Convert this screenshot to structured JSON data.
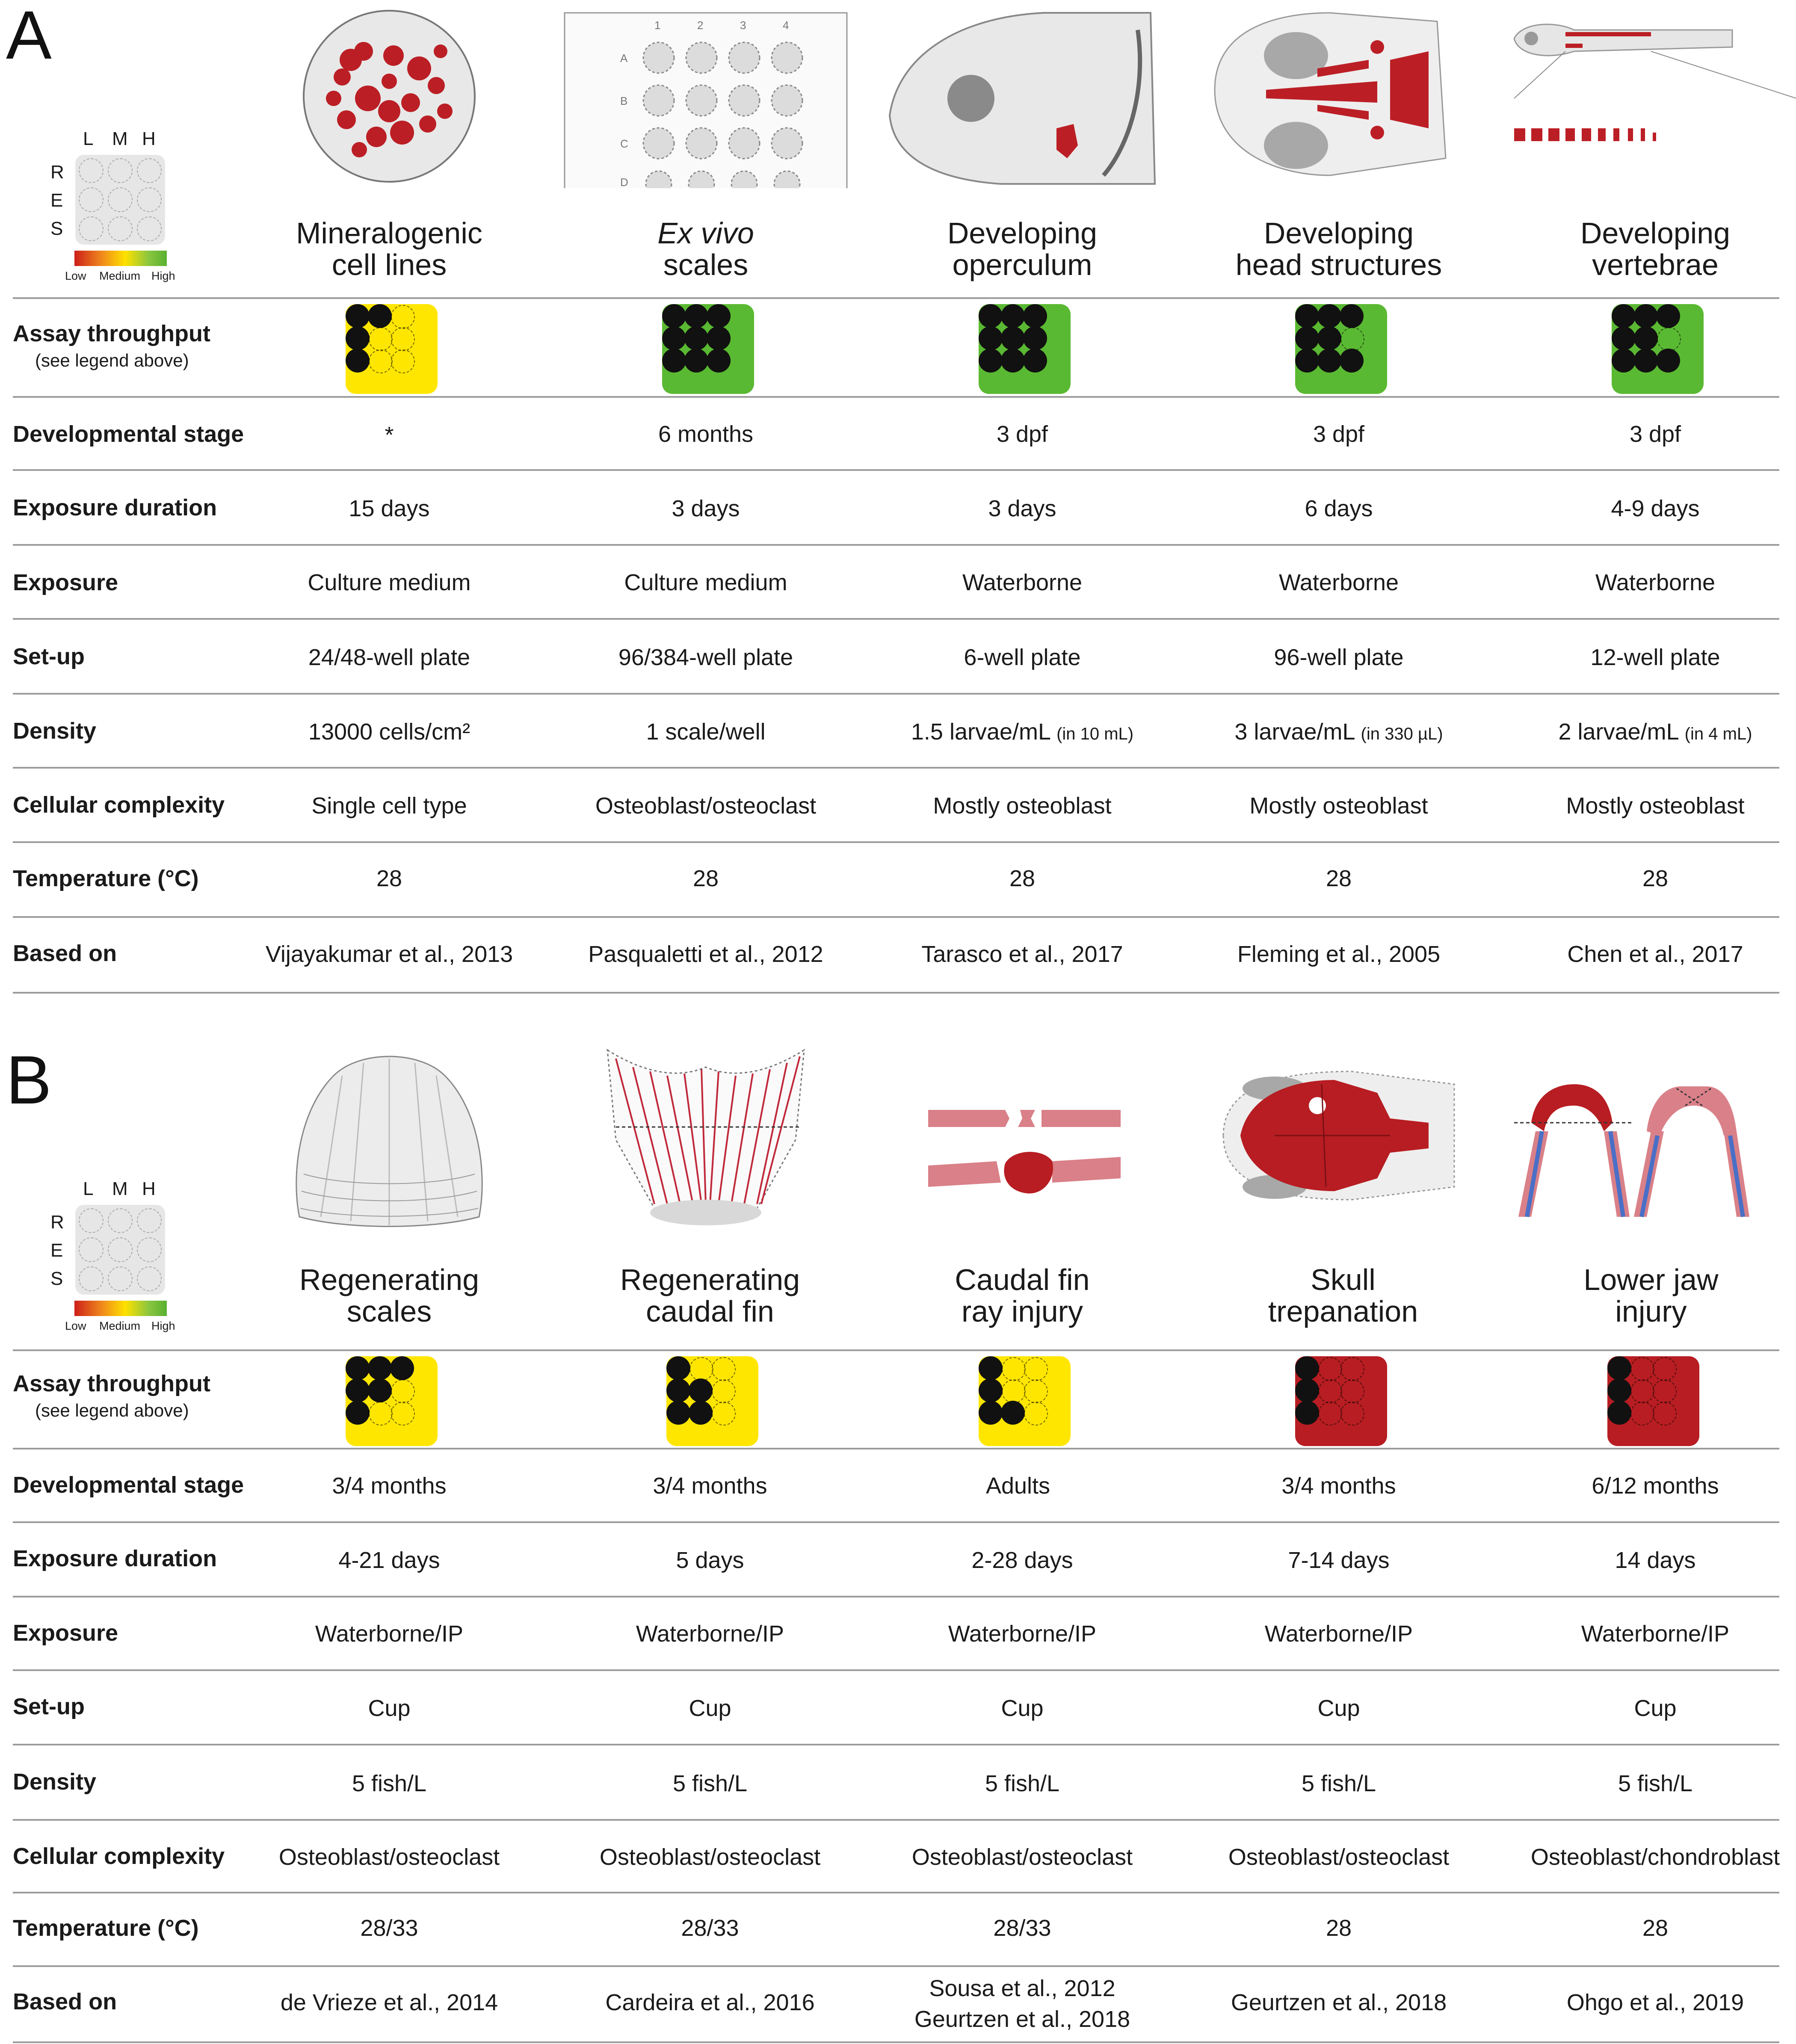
{
  "legend": {
    "cols": [
      "L",
      "M",
      "H"
    ],
    "rows": [
      "R",
      "E",
      "S"
    ],
    "low": "Low",
    "medium": "Medium",
    "high": "High"
  },
  "colors": {
    "green": "#5ab932",
    "yellow": "#ffe600",
    "red": "#b71d22",
    "dot": "#111111"
  },
  "row_labels": {
    "throughput": "Assay throughput",
    "throughput_note": "(see legend above)",
    "stage": "Developmental stage",
    "duration": "Exposure duration",
    "exposure": "Exposure",
    "setup": "Set-up",
    "density": "Density",
    "complexity": "Cellular complexity",
    "temperature": "Temperature (°C)",
    "based": "Based on"
  },
  "panelA": {
    "letter": "A",
    "columns": [
      {
        "icon": "cell-culture-well-icon",
        "title1": "Mineralogenic",
        "title2": "cell lines",
        "throughput": {
          "color": "yellow",
          "filled": [
            1,
            1,
            0,
            1,
            0,
            0,
            1,
            0,
            0
          ]
        },
        "stage": "*",
        "duration": "15 days",
        "exposure": "Culture medium",
        "setup": "24/48-well plate",
        "density": "13000 cells/cm²",
        "density_note": "",
        "complexity": "Single cell type",
        "temperature": "28",
        "based": "Vijayakumar et al., 2013"
      },
      {
        "icon": "well-plate-icon",
        "title1": "Ex vivo",
        "title2": "scales",
        "throughput": {
          "color": "green",
          "filled": [
            1,
            1,
            1,
            1,
            1,
            1,
            1,
            1,
            1
          ]
        },
        "stage": "6 months",
        "duration": "3 days",
        "exposure": "Culture medium",
        "setup": "96/384-well plate",
        "density": "1 scale/well",
        "density_note": "",
        "complexity": "Osteoblast/osteoclast",
        "temperature": "28",
        "based": "Pasqualetti et al., 2012"
      },
      {
        "icon": "larva-operculum-icon",
        "title1": "Developing",
        "title2": "operculum",
        "throughput": {
          "color": "green",
          "filled": [
            1,
            1,
            1,
            1,
            1,
            1,
            1,
            1,
            1
          ]
        },
        "stage": "3 dpf",
        "duration": "3 days",
        "exposure": "Waterborne",
        "setup": "6-well plate",
        "density": "1.5 larvae/mL",
        "density_note": "(in 10 mL)",
        "complexity": "Mostly osteoblast",
        "temperature": "28",
        "based": "Tarasco et al., 2017"
      },
      {
        "icon": "larva-head-icon",
        "title1": "Developing",
        "title2": "head structures",
        "throughput": {
          "color": "green",
          "filled": [
            1,
            1,
            1,
            1,
            1,
            0,
            1,
            1,
            1
          ]
        },
        "stage": "3 dpf",
        "duration": "6 days",
        "exposure": "Waterborne",
        "setup": "96-well plate",
        "density": "3 larvae/mL",
        "density_note": "(in 330 µL)",
        "complexity": "Mostly osteoblast",
        "temperature": "28",
        "based": "Fleming et al., 2005"
      },
      {
        "icon": "larva-vertebrae-icon",
        "title1": "Developing",
        "title2": "vertebrae",
        "throughput": {
          "color": "green",
          "filled": [
            1,
            1,
            1,
            1,
            1,
            0,
            1,
            1,
            1
          ]
        },
        "stage": "3 dpf",
        "duration": "4-9 days",
        "exposure": "Waterborne",
        "setup": "12-well plate",
        "density": "2 larvae/mL",
        "density_note": "(in 4 mL)",
        "complexity": "Mostly osteoblast",
        "temperature": "28",
        "based": "Chen et al., 2017"
      }
    ]
  },
  "panelB": {
    "letter": "B",
    "columns": [
      {
        "icon": "scale-icon",
        "title1": "Regenerating",
        "title2": "scales",
        "throughput": {
          "color": "yellow",
          "filled": [
            1,
            1,
            1,
            1,
            1,
            0,
            1,
            0,
            0
          ]
        },
        "stage": "3/4 months",
        "duration": "4-21 days",
        "exposure": "Waterborne/IP",
        "setup": "Cup",
        "density": "5 fish/L",
        "complexity": "Osteoblast/osteoclast",
        "temperature": "28/33",
        "based": "de Vrieze et al., 2014",
        "based2": ""
      },
      {
        "icon": "caudal-fin-icon",
        "title1": "Regenerating",
        "title2": "caudal fin",
        "throughput": {
          "color": "yellow",
          "filled": [
            1,
            0,
            0,
            1,
            1,
            0,
            1,
            1,
            0
          ]
        },
        "stage": "3/4 months",
        "duration": "5 days",
        "exposure": "Waterborne/IP",
        "setup": "Cup",
        "density": "5 fish/L",
        "complexity": "Osteoblast/osteoclast",
        "temperature": "28/33",
        "based": "Cardeira et al., 2016",
        "based2": ""
      },
      {
        "icon": "fin-ray-injury-icon",
        "title1": "Caudal fin",
        "title2": "ray injury",
        "throughput": {
          "color": "yellow",
          "filled": [
            1,
            0,
            0,
            1,
            0,
            0,
            1,
            1,
            0
          ]
        },
        "stage": "Adults",
        "duration": "2-28 days",
        "exposure": "Waterborne/IP",
        "setup": "Cup",
        "density": "5 fish/L",
        "complexity": "Osteoblast/osteoclast",
        "temperature": "28/33",
        "based": "Sousa et al., 2012",
        "based2": "Geurtzen et al., 2018"
      },
      {
        "icon": "skull-icon",
        "title1": "Skull",
        "title2": "trepanation",
        "throughput": {
          "color": "red",
          "filled": [
            1,
            0,
            0,
            1,
            0,
            0,
            1,
            0,
            0
          ]
        },
        "stage": "3/4 months",
        "duration": "7-14 days",
        "exposure": "Waterborne/IP",
        "setup": "Cup",
        "density": "5 fish/L",
        "complexity": "Osteoblast/osteoclast",
        "temperature": "28",
        "based": "Geurtzen et al., 2018",
        "based2": ""
      },
      {
        "icon": "lower-jaw-icon",
        "title1": "Lower jaw",
        "title2": "injury",
        "throughput": {
          "color": "red",
          "filled": [
            1,
            0,
            0,
            1,
            0,
            0,
            1,
            0,
            0
          ]
        },
        "stage": "6/12 months",
        "duration": "14 days",
        "exposure": "Waterborne/IP",
        "setup": "Cup",
        "density": "5 fish/L",
        "complexity": "Osteoblast/chondroblast",
        "temperature": "28",
        "based": "Ohgo et al., 2019",
        "based2": ""
      }
    ]
  }
}
